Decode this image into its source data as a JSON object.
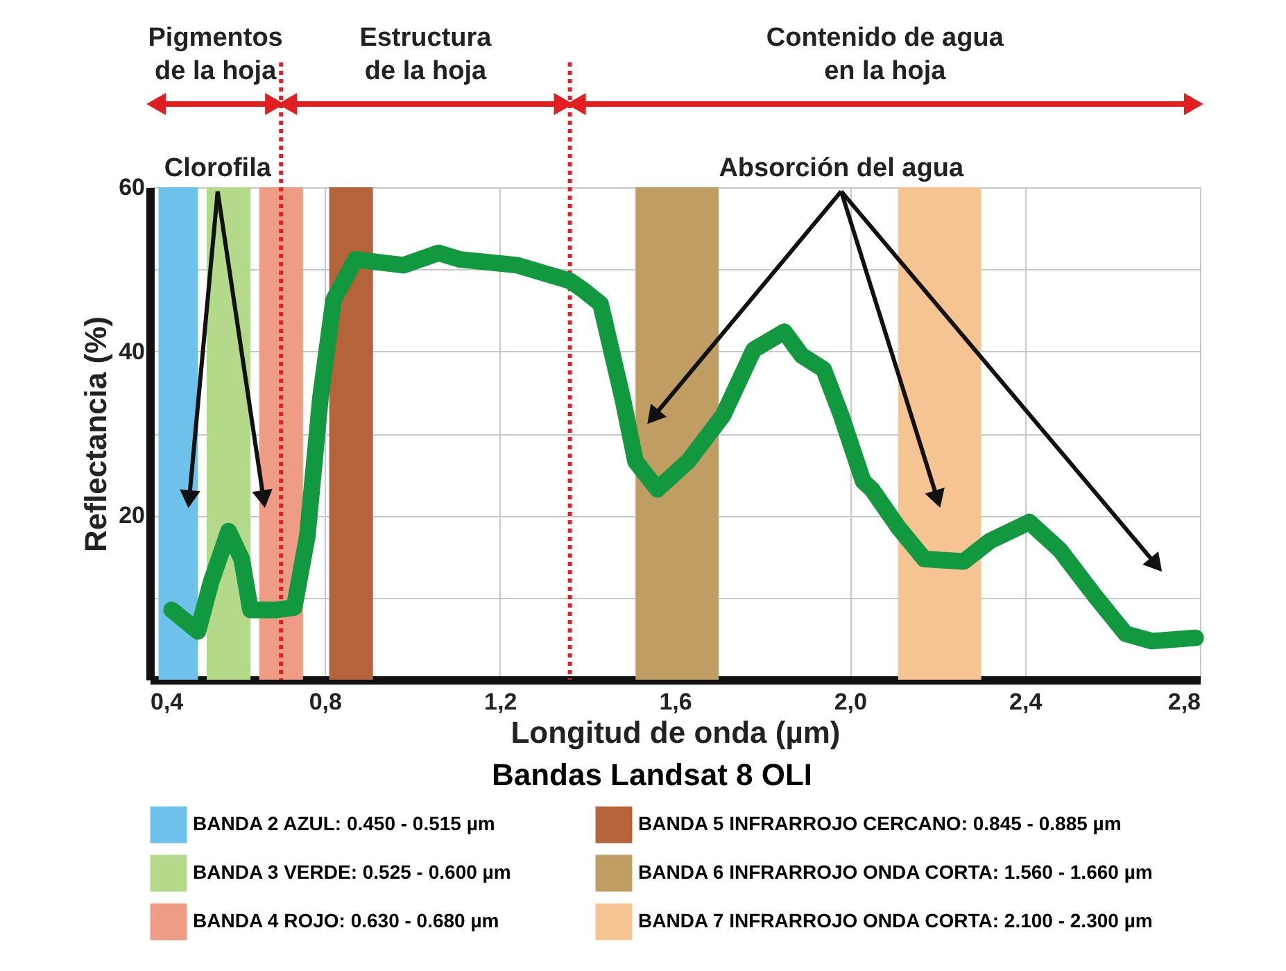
{
  "chart_data": {
    "type": "line",
    "xlabel": "Longitud de onda (µm)",
    "ylabel": "Reflectancia (%)",
    "legend_title": "Bandas Landsat 8 OLI",
    "xlim": [
      0.4,
      2.8
    ],
    "ylim": [
      0,
      60
    ],
    "xticks": [
      {
        "value": 0.4,
        "label": "0,4"
      },
      {
        "value": 0.8,
        "label": "0,8"
      },
      {
        "value": 1.2,
        "label": "1,2"
      },
      {
        "value": 1.6,
        "label": "1,6"
      },
      {
        "value": 2.0,
        "label": "2,0"
      },
      {
        "value": 2.4,
        "label": "2,4"
      },
      {
        "value": 2.8,
        "label": "2,8"
      }
    ],
    "yticks": [
      {
        "value": 10,
        "label": null
      },
      20,
      {
        "value": 30,
        "label": null
      },
      40,
      {
        "value": 50,
        "label": null
      },
      60
    ],
    "grid": true,
    "legend": "bottom",
    "line_style": "solid",
    "marker": "none",
    "series": [
      {
        "color": "#12993f",
        "x": [
          0.45,
          0.51,
          0.54,
          0.58,
          0.61,
          0.63,
          0.69,
          0.73,
          0.76,
          0.79,
          0.82,
          0.87,
          0.98,
          1.06,
          1.11,
          1.24,
          1.36,
          1.39,
          1.43,
          1.48,
          1.51,
          1.56,
          1.63,
          1.71,
          1.78,
          1.85,
          1.89,
          1.94,
          1.98,
          2.03,
          2.05,
          2.11,
          2.17,
          2.26,
          2.32,
          2.41,
          2.48,
          2.56,
          2.63,
          2.69,
          2.79
        ],
        "values": [
          8.5,
          5.9,
          11.9,
          18.1,
          14.7,
          8.5,
          8.5,
          8.8,
          17.5,
          34.4,
          46.3,
          51.2,
          50.5,
          52,
          51.2,
          50.5,
          48.6,
          47.5,
          45.8,
          34.4,
          26.6,
          23.2,
          26.6,
          32.2,
          40.2,
          42.4,
          39.5,
          37.8,
          32.2,
          24.2,
          23.2,
          18.6,
          14.7,
          14.4,
          16.9,
          19.2,
          15.8,
          10.2,
          5.6,
          4.7,
          5.1
        ]
      }
    ],
    "bands": [
      {
        "axis": "x",
        "from": 0.42,
        "to": 0.51,
        "label": "BANDA 2 AZUL: 0.450 - 0.515 µm",
        "color": "#6ec1ea"
      },
      {
        "axis": "x",
        "from": 0.53,
        "to": 0.63,
        "label": "BANDA 3 VERDE: 0.525 - 0.600 µm",
        "color": "#b5d98a"
      },
      {
        "axis": "x",
        "from": 0.65,
        "to": 0.75,
        "label": "BANDA 4 ROJO: 0.630 - 0.680 µm",
        "color": "#ee9c86"
      },
      {
        "axis": "x",
        "from": 0.81,
        "to": 0.91,
        "label": "BANDA 5 INFRARROJO CERCANO: 0.845 - 0.885 µm",
        "color": "#b5633a"
      },
      {
        "axis": "x",
        "from": 1.51,
        "to": 1.7,
        "label": "BANDA 6 INFRARROJO ONDA CORTA: 1.560 - 1.660 µm",
        "color": "#c09d62"
      },
      {
        "axis": "x",
        "from": 2.11,
        "to": 2.3,
        "label": "BANDA 7 INFRARROJO ONDA CORTA: 2.100 - 2.300 µm",
        "color": "#f6c493"
      }
    ],
    "ref_lines": [
      {
        "axis": "x",
        "value": 0.7,
        "color": "#e02020",
        "line_style": "dotted"
      },
      {
        "axis": "x",
        "value": 1.36,
        "color": "#e02020",
        "line_style": "dotted"
      }
    ],
    "annotations": [
      "Pigmentos\nde la hoja",
      "Estructura\nde la hoja",
      "Contenido de agua\nen la hoja",
      "Clorofila",
      "Absorción del agua"
    ]
  }
}
